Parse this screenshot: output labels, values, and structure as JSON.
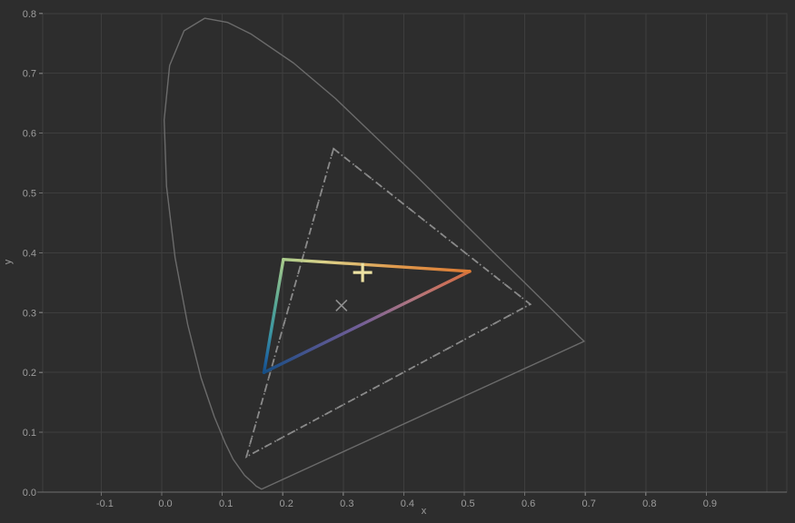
{
  "chart_data": {
    "type": "scatter",
    "subtype": "cie-1931-chromaticity-diagram",
    "title": "",
    "xlabel": "x",
    "ylabel": "y",
    "xlim": [
      -0.197,
      1.033
    ],
    "ylim": [
      0.0,
      0.8
    ],
    "grid": true,
    "legend": "none",
    "xticks": [
      {
        "v": -0.1,
        "label": "-0.1"
      },
      {
        "v": 0.0,
        "label": "0.0"
      },
      {
        "v": 0.1,
        "label": "0.1"
      },
      {
        "v": 0.2,
        "label": "0.2"
      },
      {
        "v": 0.3,
        "label": "0.3"
      },
      {
        "v": 0.4,
        "label": "0.4"
      },
      {
        "v": 0.5,
        "label": "0.5"
      },
      {
        "v": 0.6,
        "label": "0.6"
      },
      {
        "v": 0.7,
        "label": "0.7"
      },
      {
        "v": 0.8,
        "label": "0.8"
      },
      {
        "v": 0.9,
        "label": "0.9"
      }
    ],
    "xgrid_extra": [
      1.0
    ],
    "yticks": [
      {
        "v": 0.0,
        "label": "0.0"
      },
      {
        "v": 0.1,
        "label": "0.1"
      },
      {
        "v": 0.2,
        "label": "0.2"
      },
      {
        "v": 0.3,
        "label": "0.3"
      },
      {
        "v": 0.4,
        "label": "0.4"
      },
      {
        "v": 0.5,
        "label": "0.5"
      },
      {
        "v": 0.6,
        "label": "0.6"
      },
      {
        "v": 0.7,
        "label": "0.7"
      },
      {
        "v": 0.8,
        "label": "0.8"
      }
    ],
    "spectral_locus": [
      [
        0.165,
        0.005
      ],
      [
        0.156,
        0.01
      ],
      [
        0.149,
        0.017
      ],
      [
        0.137,
        0.028
      ],
      [
        0.118,
        0.055
      ],
      [
        0.105,
        0.082
      ],
      [
        0.087,
        0.126
      ],
      [
        0.065,
        0.191
      ],
      [
        0.043,
        0.28
      ],
      [
        0.022,
        0.392
      ],
      [
        0.008,
        0.511
      ],
      [
        0.004,
        0.622
      ],
      [
        0.013,
        0.713
      ],
      [
        0.037,
        0.771
      ],
      [
        0.071,
        0.792
      ],
      [
        0.109,
        0.785
      ],
      [
        0.147,
        0.766
      ],
      [
        0.218,
        0.717
      ],
      [
        0.287,
        0.658
      ],
      [
        0.354,
        0.593
      ],
      [
        0.422,
        0.527
      ],
      [
        0.487,
        0.462
      ],
      [
        0.546,
        0.403
      ],
      [
        0.596,
        0.354
      ],
      [
        0.633,
        0.317
      ],
      [
        0.657,
        0.293
      ],
      [
        0.673,
        0.277
      ],
      [
        0.69,
        0.26
      ],
      [
        0.698,
        0.252
      ]
    ],
    "reference_triangle_dashed": {
      "green": [
        0.284,
        0.574
      ],
      "red": [
        0.609,
        0.314
      ],
      "blue": [
        0.14,
        0.059
      ]
    },
    "reference_triangle_dotted": {
      "green": [
        0.284,
        0.574
      ],
      "red": [
        0.609,
        0.314
      ],
      "blue": [
        0.14,
        0.059
      ]
    },
    "gamut_triangle": {
      "green": [
        0.201,
        0.389
      ],
      "red": [
        0.509,
        0.369
      ],
      "blue": [
        0.169,
        0.2
      ]
    },
    "white_point_plus": [
      0.332,
      0.367
    ],
    "reference_point_x": [
      0.297,
      0.312
    ],
    "colors": {
      "background": "#2d2d2d",
      "grid": "#3e3e3e",
      "axis": "#707070",
      "tick_label": "#9d9d9d",
      "locus": "#6b6b6b",
      "dashed_triangle": "#878787",
      "dotted_triangle": "#8e8e8e",
      "plus_marker": "#ece1a2",
      "x_marker": "#8f8f8f",
      "gamut_green_vertex": "#a9cb8b",
      "gamut_yellow_mid": "#ddd28a",
      "gamut_red_vertex": "#dd7b35",
      "gamut_teal_mid": "#3c96a2",
      "gamut_blue_vertex": "#164f86",
      "gamut_purple_mid": "#735f97",
      "gamut_pink_mid": "#b07680"
    }
  }
}
